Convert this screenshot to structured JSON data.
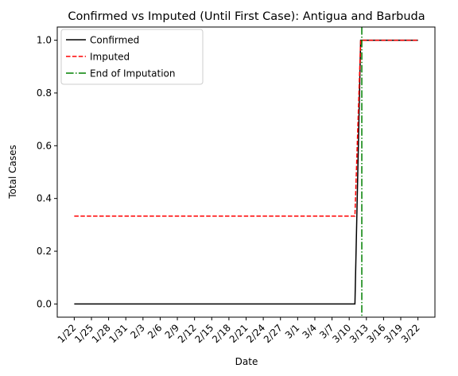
{
  "chart_data": {
    "type": "line",
    "title": "Confirmed vs Imputed (Until First Case): Antigua and Barbuda",
    "xlabel": "Date",
    "ylabel": "Total Cases",
    "ylim": [
      -0.05,
      1.05
    ],
    "yticks": [
      0.0,
      0.2,
      0.4,
      0.6,
      0.8,
      1.0
    ],
    "ytick_labels": [
      "0.0",
      "0.2",
      "0.4",
      "0.6",
      "0.8",
      "1.0"
    ],
    "x_dates": [
      "1/22",
      "1/23",
      "1/24",
      "1/25",
      "1/26",
      "1/27",
      "1/28",
      "1/29",
      "1/30",
      "1/31",
      "2/1",
      "2/2",
      "2/3",
      "2/4",
      "2/5",
      "2/6",
      "2/7",
      "2/8",
      "2/9",
      "2/10",
      "2/11",
      "2/12",
      "2/13",
      "2/14",
      "2/15",
      "2/16",
      "2/17",
      "2/18",
      "2/19",
      "2/20",
      "2/21",
      "2/22",
      "2/23",
      "2/24",
      "2/25",
      "2/26",
      "2/27",
      "2/28",
      "2/29",
      "3/1",
      "3/2",
      "3/3",
      "3/4",
      "3/5",
      "3/6",
      "3/7",
      "3/8",
      "3/9",
      "3/10",
      "3/11",
      "3/12",
      "3/13",
      "3/14",
      "3/15",
      "3/16",
      "3/17",
      "3/18",
      "3/19",
      "3/20",
      "3/21",
      "3/22"
    ],
    "xtick_labels": [
      "1/22",
      "1/25",
      "1/28",
      "1/31",
      "2/3",
      "2/6",
      "2/9",
      "2/12",
      "2/15",
      "2/18",
      "2/21",
      "2/24",
      "2/27",
      "3/1",
      "3/4",
      "3/7",
      "3/10",
      "3/13",
      "3/16",
      "3/19",
      "3/22"
    ],
    "series": [
      {
        "name": "Confirmed",
        "color": "#000000",
        "style": "solid",
        "values": [
          0,
          0,
          0,
          0,
          0,
          0,
          0,
          0,
          0,
          0,
          0,
          0,
          0,
          0,
          0,
          0,
          0,
          0,
          0,
          0,
          0,
          0,
          0,
          0,
          0,
          0,
          0,
          0,
          0,
          0,
          0,
          0,
          0,
          0,
          0,
          0,
          0,
          0,
          0,
          0,
          0,
          0,
          0,
          0,
          0,
          0,
          0,
          0,
          0,
          0,
          1,
          1,
          1,
          1,
          1,
          1,
          1,
          1,
          1,
          1,
          1
        ]
      },
      {
        "name": "Imputed",
        "color": "#ff0000",
        "style": "dashed",
        "values": [
          0.333,
          0.333,
          0.333,
          0.333,
          0.333,
          0.333,
          0.333,
          0.333,
          0.333,
          0.333,
          0.333,
          0.333,
          0.333,
          0.333,
          0.333,
          0.333,
          0.333,
          0.333,
          0.333,
          0.333,
          0.333,
          0.333,
          0.333,
          0.333,
          0.333,
          0.333,
          0.333,
          0.333,
          0.333,
          0.333,
          0.333,
          0.333,
          0.333,
          0.333,
          0.333,
          0.333,
          0.333,
          0.333,
          0.333,
          0.333,
          0.333,
          0.333,
          0.333,
          0.333,
          0.333,
          0.333,
          0.333,
          0.333,
          0.333,
          0.333,
          1,
          1,
          1,
          1,
          1,
          1,
          1,
          1,
          1,
          1,
          1
        ]
      }
    ],
    "vline": {
      "name": "End of Imputation",
      "x": "3/12",
      "color": "#008000",
      "style": "dashdot"
    },
    "legend_position": "top-left",
    "grid": false
  }
}
